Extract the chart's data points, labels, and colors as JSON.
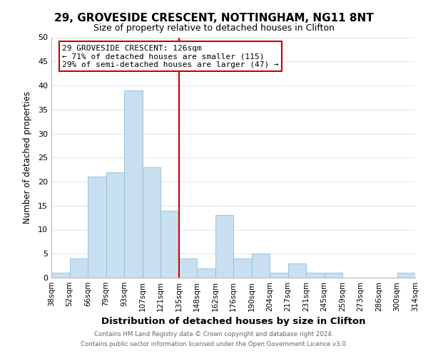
{
  "title_line1": "29, GROVESIDE CRESCENT, NOTTINGHAM, NG11 8NT",
  "title_line2": "Size of property relative to detached houses in Clifton",
  "xlabel": "Distribution of detached houses by size in Clifton",
  "ylabel": "Number of detached properties",
  "bin_labels": [
    "38sqm",
    "52sqm",
    "66sqm",
    "79sqm",
    "93sqm",
    "107sqm",
    "121sqm",
    "135sqm",
    "148sqm",
    "162sqm",
    "176sqm",
    "190sqm",
    "204sqm",
    "217sqm",
    "231sqm",
    "245sqm",
    "259sqm",
    "273sqm",
    "286sqm",
    "300sqm",
    "314sqm"
  ],
  "bar_heights": [
    1,
    4,
    21,
    22,
    39,
    23,
    14,
    4,
    2,
    13,
    4,
    5,
    1,
    3,
    1,
    1,
    0,
    0,
    0,
    1
  ],
  "bar_color": "#c8dff0",
  "bar_edge_color": "#90bcd8",
  "vline_x": 7,
  "vline_color": "#cc0000",
  "ylim": [
    0,
    50
  ],
  "yticks": [
    0,
    5,
    10,
    15,
    20,
    25,
    30,
    35,
    40,
    45,
    50
  ],
  "annotation_title": "29 GROVESIDE CRESCENT: 126sqm",
  "annotation_line1": "← 71% of detached houses are smaller (115)",
  "annotation_line2": "29% of semi-detached houses are larger (47) →",
  "annotation_box_color": "#ffffff",
  "annotation_box_edge": "#cc0000",
  "footer_line1": "Contains HM Land Registry data © Crown copyright and database right 2024.",
  "footer_line2": "Contains public sector information licensed under the Open Government Licence v3.0.",
  "background_color": "#ffffff",
  "grid_color": "#dce8f0"
}
